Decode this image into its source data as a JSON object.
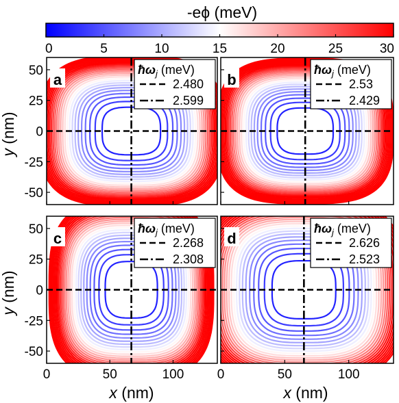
{
  "colorbar": {
    "label": "-eϕ (meV)",
    "min": 0,
    "max": 30,
    "ticks": [
      0,
      5,
      10,
      15,
      20,
      25,
      30
    ],
    "colors": {
      "low": "#0000ff",
      "mid": "#ffffff",
      "high": "#ff0000"
    }
  },
  "axes": {
    "xlabel": "x (nm)",
    "ylabel": "y (nm)",
    "xticks": [
      0,
      50,
      100
    ],
    "yticks": [
      50,
      25,
      0,
      -25,
      -50
    ],
    "xlim": [
      0,
      135
    ],
    "ylim": [
      -60,
      60
    ]
  },
  "legend_title": "ħω_j (meV)",
  "chart_data": [
    {
      "type": "contour",
      "panel": "a",
      "center": {
        "x": 67,
        "y": 0
      },
      "spread": {
        "x": 38,
        "y": 32
      },
      "lines": [
        {
          "style": "dashed",
          "orientation": "horizontal",
          "value": 0,
          "legend_value": "2.480"
        },
        {
          "style": "dash-dot",
          "orientation": "vertical",
          "value": 67,
          "legend_value": "2.599"
        }
      ],
      "ylim": [
        -60,
        60
      ],
      "xlim": [
        0,
        135
      ]
    },
    {
      "type": "contour",
      "panel": "b",
      "center": {
        "x": 66,
        "y": 0
      },
      "spread": {
        "x": 36,
        "y": 31
      },
      "lines": [
        {
          "style": "dashed",
          "orientation": "horizontal",
          "value": 0,
          "legend_value": "2.53"
        },
        {
          "style": "dash-dot",
          "orientation": "vertical",
          "value": 66,
          "legend_value": "2.429"
        }
      ],
      "ylim": [
        -60,
        60
      ],
      "xlim": [
        0,
        135
      ]
    },
    {
      "type": "contour",
      "panel": "c",
      "center": {
        "x": 67,
        "y": 0
      },
      "spread": {
        "x": 34,
        "y": 38
      },
      "lines": [
        {
          "style": "dashed",
          "orientation": "horizontal",
          "value": 0,
          "legend_value": "2.268"
        },
        {
          "style": "dash-dot",
          "orientation": "vertical",
          "value": 67,
          "legend_value": "2.308"
        }
      ],
      "ylim": [
        -60,
        60
      ],
      "xlim": [
        0,
        135
      ]
    },
    {
      "type": "contour",
      "panel": "d",
      "center": {
        "x": 65,
        "y": 0
      },
      "spread": {
        "x": 41,
        "y": 39
      },
      "lines": [
        {
          "style": "dashed",
          "orientation": "horizontal",
          "value": 0,
          "legend_value": "2.626"
        },
        {
          "style": "dash-dot",
          "orientation": "vertical",
          "value": 65,
          "legend_value": "2.523"
        }
      ],
      "ylim": [
        -60,
        60
      ],
      "xlim": [
        0,
        135
      ]
    }
  ]
}
